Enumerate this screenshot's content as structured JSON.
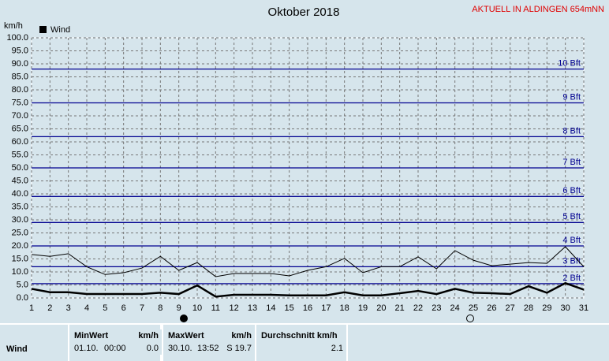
{
  "chart_data": {
    "type": "line",
    "title": "Oktober 2018",
    "station": "AKTUELL IN ALDINGEN 654mNN",
    "y_label": "km/h",
    "x": [
      1,
      2,
      3,
      4,
      5,
      6,
      7,
      8,
      9,
      10,
      11,
      12,
      13,
      14,
      15,
      16,
      17,
      18,
      19,
      20,
      21,
      22,
      23,
      24,
      25,
      26,
      27,
      28,
      29,
      30,
      31
    ],
    "xlim": [
      1,
      31
    ],
    "xticks": [
      1,
      2,
      3,
      4,
      5,
      6,
      7,
      8,
      9,
      10,
      11,
      12,
      13,
      14,
      15,
      16,
      17,
      18,
      19,
      20,
      21,
      22,
      23,
      24,
      25,
      26,
      27,
      28,
      29,
      30,
      31
    ],
    "ylim": [
      0,
      100
    ],
    "yticks": [
      {
        "value": 0,
        "label": "0.0"
      },
      {
        "value": 5,
        "label": "5.0"
      },
      {
        "value": 10,
        "label": "10.0"
      },
      {
        "value": 15,
        "label": "15.0"
      },
      {
        "value": 20,
        "label": "20.0"
      },
      {
        "value": 25,
        "label": "25.0"
      },
      {
        "value": 30,
        "label": "30.0"
      },
      {
        "value": 35,
        "label": "35.0"
      },
      {
        "value": 40,
        "label": "40.0"
      },
      {
        "value": 45,
        "label": "45.0"
      },
      {
        "value": 50,
        "label": "50.0"
      },
      {
        "value": 55,
        "label": "55.0"
      },
      {
        "value": 60,
        "label": "60.0"
      },
      {
        "value": 65,
        "label": "65.0"
      },
      {
        "value": 70,
        "label": "70.0"
      },
      {
        "value": 75,
        "label": "75.0"
      },
      {
        "value": 80,
        "label": "80.0"
      },
      {
        "value": 85,
        "label": "85.0"
      },
      {
        "value": 90,
        "label": "90.0"
      },
      {
        "value": 95,
        "label": "95.0"
      },
      {
        "value": 100,
        "label": "100.0"
      }
    ],
    "grid": true,
    "reference_lines": [
      {
        "value": 5.5,
        "label": "2 Bft"
      },
      {
        "value": 12,
        "label": "3 Bft"
      },
      {
        "value": 20,
        "label": "4 Bft"
      },
      {
        "value": 29,
        "label": "5 Bft"
      },
      {
        "value": 39,
        "label": "6 Bft"
      },
      {
        "value": 50,
        "label": "7 Bft"
      },
      {
        "value": 62,
        "label": "8 Bft"
      },
      {
        "value": 75,
        "label": "9 Bft"
      },
      {
        "value": 88,
        "label": "10 Bft"
      }
    ],
    "reference_color": "#000090",
    "series": [
      {
        "name": "Wind",
        "color": "#000000",
        "width": 2.5,
        "values": [
          3.5,
          2.2,
          2.2,
          1.5,
          1.5,
          1.5,
          1.5,
          2,
          1.5,
          4.8,
          0.5,
          1.2,
          1.2,
          1.2,
          1,
          1,
          1,
          2.2,
          1,
          1,
          1.8,
          2.7,
          1.5,
          3.5,
          2,
          1.8,
          1.5,
          4.5,
          2,
          5.7,
          3.2
        ]
      },
      {
        "color": "#000000",
        "width": 1,
        "values": [
          16.7,
          16,
          17,
          12,
          9,
          9.7,
          11.5,
          16,
          10.6,
          13.6,
          8.2,
          9.4,
          9.4,
          9.4,
          8.5,
          10.6,
          12,
          15.2,
          9.7,
          12,
          12,
          15.8,
          11.2,
          18.2,
          14.5,
          12.4,
          13,
          13.6,
          13.3,
          19.7,
          12
        ]
      }
    ]
  },
  "table": {
    "header": [
      "MinWert",
      "km/h",
      "MaxWert",
      "km/h",
      "Durchschnitt km/h"
    ],
    "rows": [
      [
        "Wind",
        "01.10.",
        "00:00",
        "0.0",
        "30.10.",
        "13:52",
        "S 19.7",
        "2.1"
      ]
    ]
  }
}
